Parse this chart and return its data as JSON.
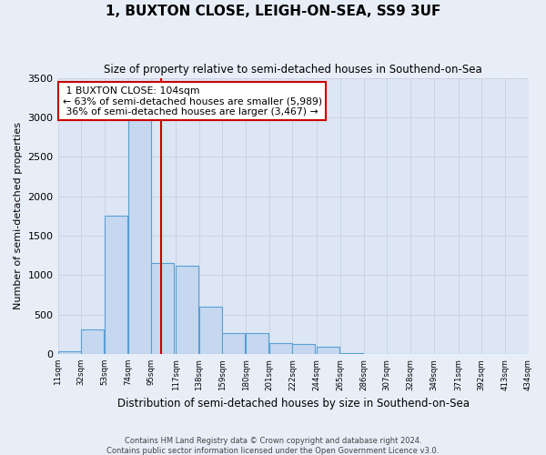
{
  "title": "1, BUXTON CLOSE, LEIGH-ON-SEA, SS9 3UF",
  "subtitle": "Size of property relative to semi-detached houses in Southend-on-Sea",
  "xlabel": "Distribution of semi-detached houses by size in Southend-on-Sea",
  "ylabel": "Number of semi-detached properties",
  "footer_line1": "Contains HM Land Registry data © Crown copyright and database right 2024.",
  "footer_line2": "Contains public sector information licensed under the Open Government Licence v3.0.",
  "property_size": 104,
  "property_label": "1 BUXTON CLOSE: 104sqm",
  "pct_smaller": 63,
  "count_smaller": 5989,
  "pct_larger": 36,
  "count_larger": 3467,
  "bar_color": "#c5d8f0",
  "bar_edge_color": "#5a9fd4",
  "vline_color": "#cc0000",
  "grid_color": "#c8d0dc",
  "bg_color": "#dce6f5",
  "fig_bg_color": "#e8eef8",
  "bins": [
    11,
    32,
    53,
    74,
    95,
    117,
    138,
    159,
    180,
    201,
    222,
    244,
    265,
    286,
    307,
    328,
    349,
    371,
    392,
    413,
    434
  ],
  "counts": [
    30,
    310,
    1750,
    3100,
    1150,
    1120,
    600,
    270,
    260,
    140,
    130,
    90,
    10,
    0,
    0,
    0,
    0,
    0,
    0,
    0
  ],
  "ylim": [
    0,
    3500
  ],
  "yticks": [
    0,
    500,
    1000,
    1500,
    2000,
    2500,
    3000,
    3500
  ]
}
